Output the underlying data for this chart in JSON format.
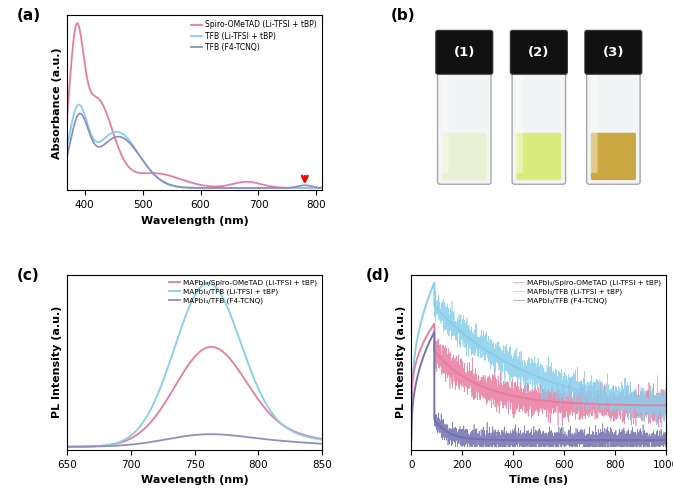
{
  "panel_a": {
    "title": "(a)",
    "xlabel": "Wavelength (nm)",
    "ylabel": "Absorbance (a.u.)",
    "xlim": [
      370,
      810
    ],
    "xticks": [
      400,
      500,
      600,
      700,
      800
    ],
    "legend": [
      "Spiro-OMeTAD (Li-TFSI + tBP)",
      "TFB (Li-TFSI + tBP)",
      "TFB (F4-TCNQ)"
    ],
    "colors": [
      "#e87ca0",
      "#87ceeb",
      "#9090bb"
    ]
  },
  "panel_b": {
    "title": "(b)",
    "labels": [
      "(1)",
      "(2)",
      "(3)"
    ],
    "liquid_colors": [
      "#e8f0d0",
      "#d8ec70",
      "#c8a030"
    ],
    "bg_color": "#e8e8e8"
  },
  "panel_c": {
    "title": "(c)",
    "xlabel": "Wavelength (nm)",
    "ylabel": "PL Intensity (a.u.)",
    "xlim": [
      650,
      850
    ],
    "xticks": [
      650,
      700,
      750,
      800,
      850
    ],
    "legend": [
      "MAPbI₃/Spiro-OMeTAD (Li-TFSI + tBP)",
      "MAPbI₃/TFB (Li-TFSI + tBP)",
      "MAPbI₃/TFB (F4-TCNQ)"
    ],
    "colors": [
      "#e87ca0",
      "#87ceeb",
      "#9090bb"
    ]
  },
  "panel_d": {
    "title": "(d)",
    "xlabel": "Time (ns)",
    "ylabel": "PL Intensity (a.u.)",
    "xlim": [
      0,
      1000
    ],
    "xticks": [
      0,
      200,
      400,
      600,
      800,
      1000
    ],
    "legend": [
      "MAPbI₃/Spiro-OMeTAD (Li-TFSI + tBP)",
      "MAPbI₃/TFB (Li-TFSI + tBP)",
      "MAPbI₃/TFB (F4-TCNQ)"
    ],
    "colors": [
      "#e87ca0",
      "#87ceeb",
      "#7070b0"
    ]
  }
}
